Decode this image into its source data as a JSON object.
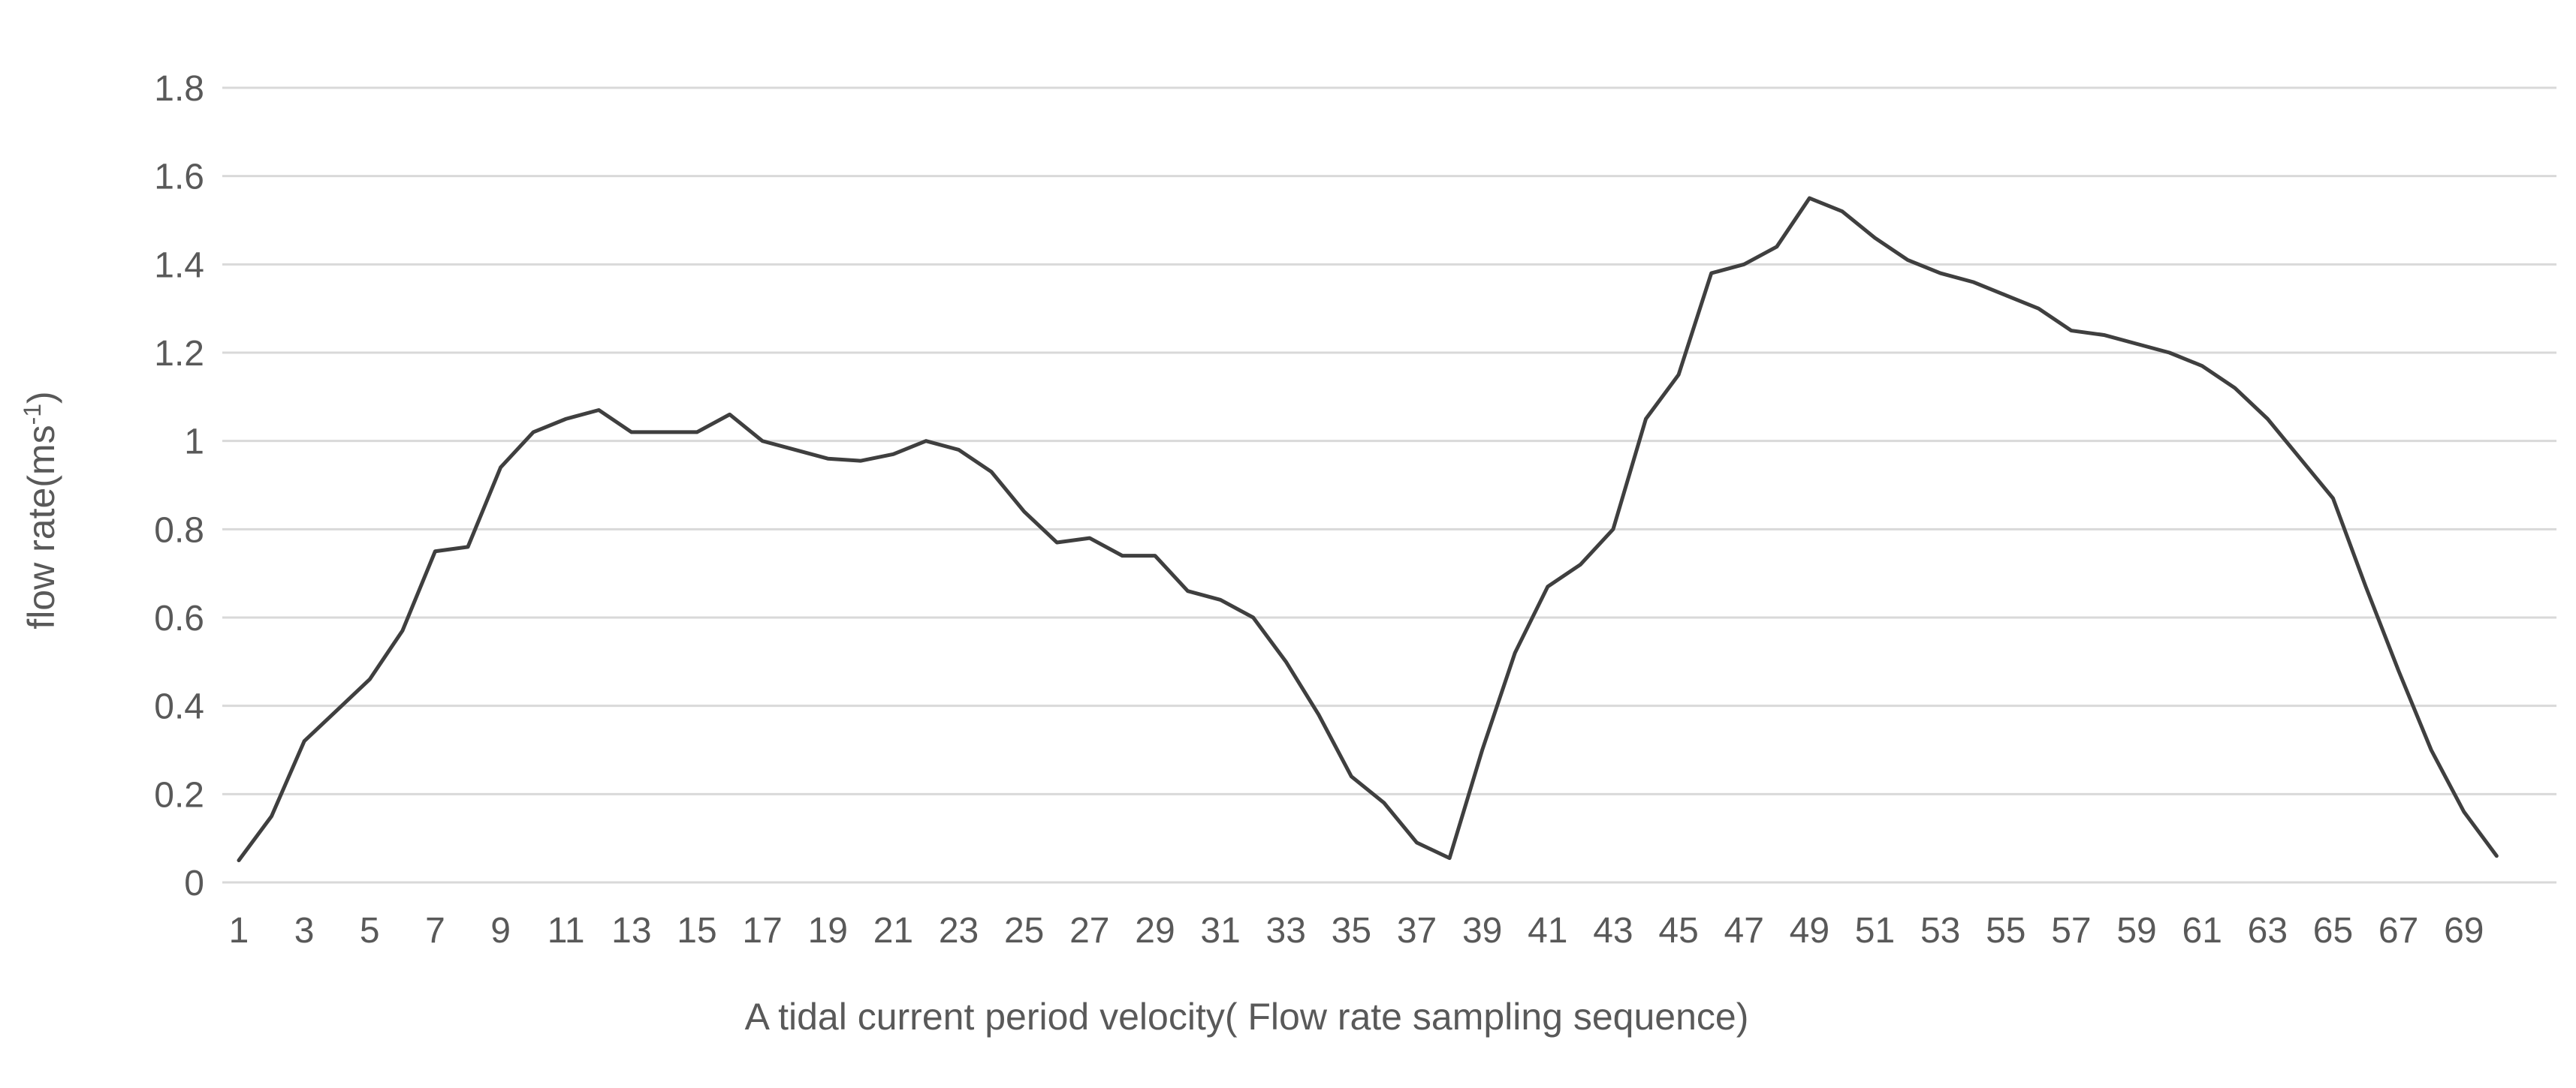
{
  "chart_data": {
    "type": "line",
    "title": "",
    "xlabel": "A tidal current period velocity( Flow rate sampling sequence)",
    "ylabel": "flow rate(ms-1)",
    "ylabel_parts": {
      "prefix": "flow rate(ms",
      "superscript": "-1",
      "suffix": ")"
    },
    "x": [
      1,
      2,
      3,
      4,
      5,
      6,
      7,
      8,
      9,
      10,
      11,
      12,
      13,
      14,
      15,
      16,
      17,
      18,
      19,
      20,
      21,
      22,
      23,
      24,
      25,
      26,
      27,
      28,
      29,
      30,
      31,
      32,
      33,
      34,
      35,
      36,
      37,
      38,
      39,
      40,
      41,
      42,
      43,
      44,
      45,
      46,
      47,
      48,
      49,
      50,
      51,
      52,
      53,
      54,
      55,
      56,
      57,
      58,
      59,
      60,
      61,
      62,
      63,
      64,
      65,
      66,
      67,
      68,
      69,
      70
    ],
    "values": [
      0.05,
      0.15,
      0.32,
      0.39,
      0.46,
      0.57,
      0.75,
      0.76,
      0.94,
      1.02,
      1.05,
      1.07,
      1.02,
      1.02,
      1.02,
      1.06,
      1.0,
      0.98,
      0.96,
      0.955,
      0.97,
      1.0,
      0.98,
      0.93,
      0.84,
      0.77,
      0.78,
      0.74,
      0.74,
      0.66,
      0.64,
      0.6,
      0.5,
      0.38,
      0.24,
      0.18,
      0.09,
      0.055,
      0.3,
      0.52,
      0.67,
      0.72,
      0.8,
      1.05,
      1.15,
      1.38,
      1.4,
      1.44,
      1.55,
      1.52,
      1.46,
      1.41,
      1.38,
      1.36,
      1.33,
      1.3,
      1.25,
      1.24,
      1.22,
      1.2,
      1.17,
      1.12,
      1.05,
      0.96,
      0.87,
      0.67,
      0.48,
      0.3,
      0.16,
      0.06
    ],
    "x_tick_labels": [
      "1",
      "3",
      "5",
      "7",
      "9",
      "11",
      "13",
      "15",
      "17",
      "19",
      "21",
      "23",
      "25",
      "27",
      "29",
      "31",
      "33",
      "35",
      "37",
      "39",
      "41",
      "43",
      "45",
      "47",
      "49",
      "51",
      "53",
      "55",
      "57",
      "59",
      "61",
      "63",
      "65",
      "67",
      "69"
    ],
    "y_tick_labels": [
      "0",
      "0.2",
      "0.4",
      "0.6",
      "0.8",
      "1",
      "1.2",
      "1.4",
      "1.6",
      "1.8"
    ],
    "y_ticks": [
      0,
      0.2,
      0.4,
      0.6,
      0.8,
      1.0,
      1.2,
      1.4,
      1.6,
      1.8
    ],
    "ylim": [
      0,
      1.8
    ],
    "grid": true,
    "legend": "none",
    "line_color": "#3f3f3f",
    "gridline_color": "#d9d9d9",
    "label_color": "#595959",
    "background": "#ffffff"
  }
}
